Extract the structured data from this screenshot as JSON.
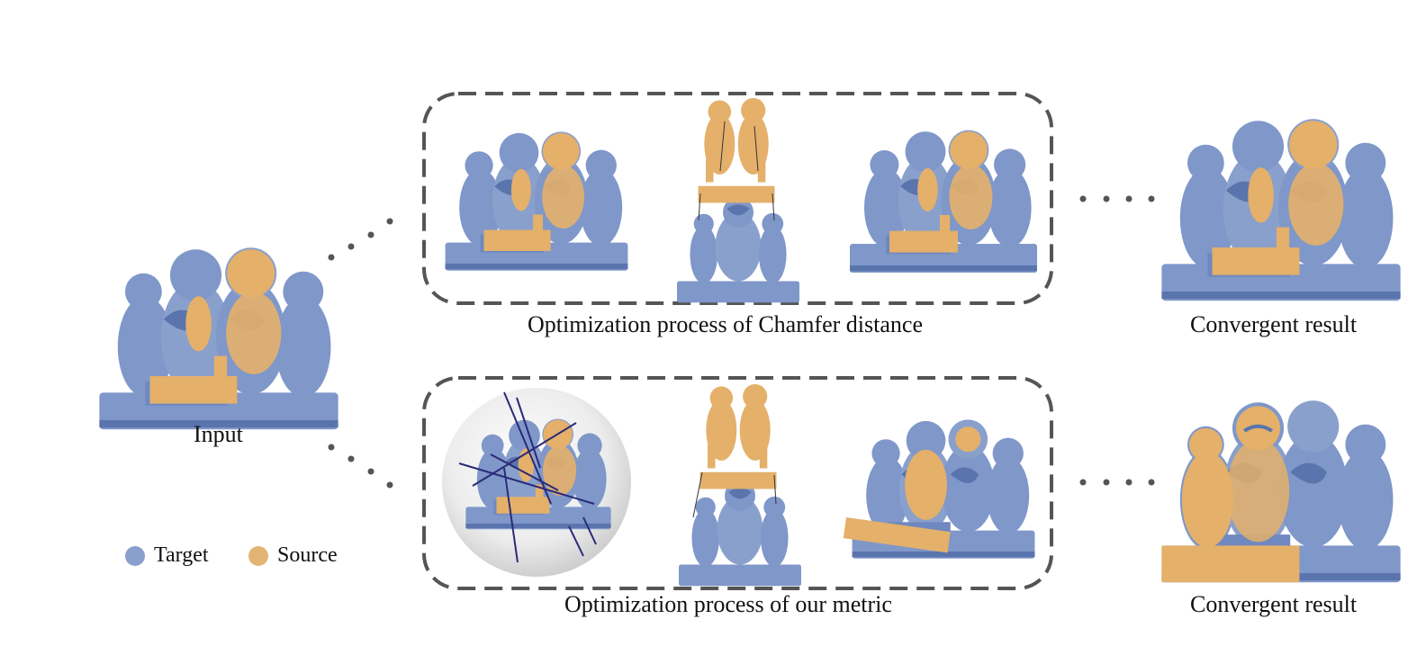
{
  "captions": {
    "input": "Input",
    "chamfer": "Optimization process of Chamfer distance",
    "ours": "Optimization process of our metric",
    "convergent_top": "Convergent result",
    "convergent_bottom": "Convergent result"
  },
  "legend": {
    "target": {
      "label": "Target",
      "color": "#8aa0cc"
    },
    "source": {
      "label": "Source",
      "color": "#e3b574"
    }
  },
  "colors": {
    "target": "#7f97c9",
    "target_dark": "#5a74ad",
    "source": "#e4b06a",
    "box_border": "#555555",
    "lines": "#2a2a7a"
  }
}
